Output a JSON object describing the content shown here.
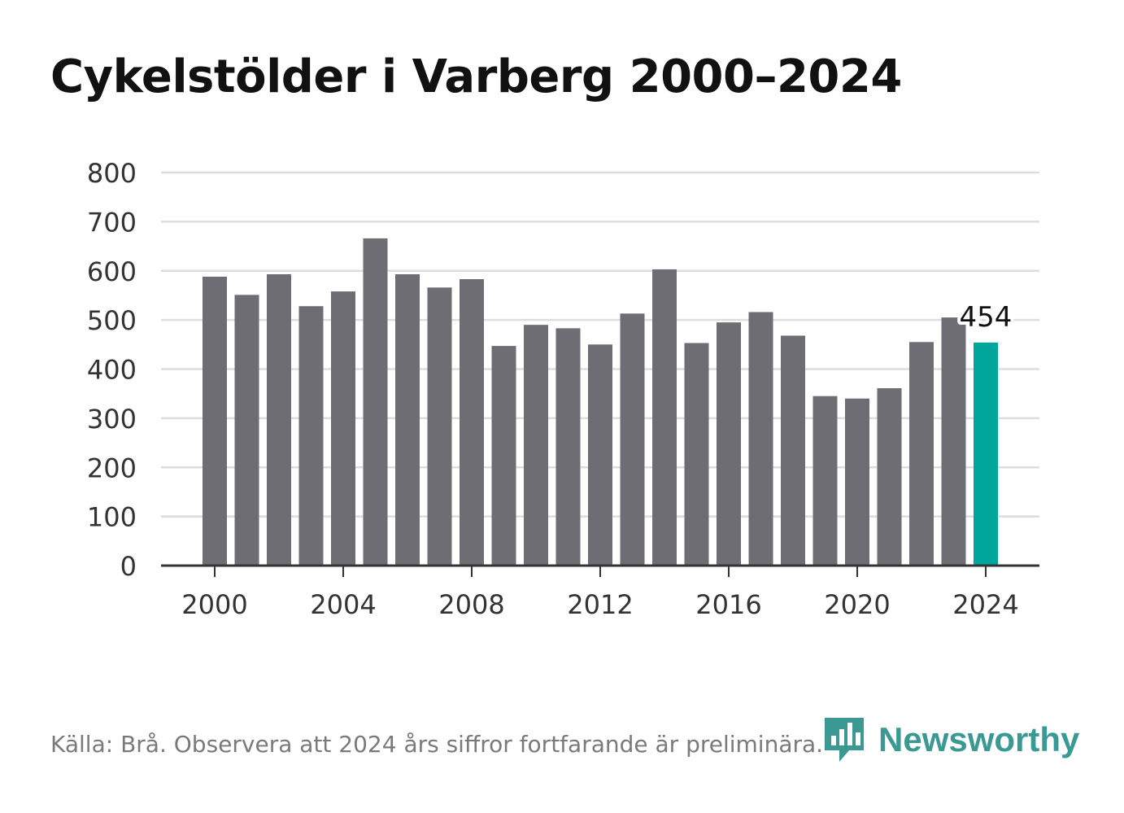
{
  "title": "Cykelstölder i Varberg 2000–2024",
  "source": "Källa: Brå. Observera att 2024 års siffror fortfarande är preliminära.",
  "brand": {
    "name": "Newsworthy",
    "icon": "newsworthy-logo-icon"
  },
  "colors": {
    "bar": "#6e6d74",
    "highlight": "#00a59b",
    "brand": "#3a9a93",
    "grid": "#dddddd",
    "axis": "#333333"
  },
  "chart_data": {
    "type": "bar",
    "title": "Cykelstölder i Varberg 2000–2024",
    "xlabel": "",
    "ylabel": "",
    "categories": [
      "2000",
      "2001",
      "2002",
      "2003",
      "2004",
      "2005",
      "2006",
      "2007",
      "2008",
      "2009",
      "2010",
      "2011",
      "2012",
      "2013",
      "2014",
      "2015",
      "2016",
      "2017",
      "2018",
      "2019",
      "2020",
      "2021",
      "2022",
      "2023",
      "2024"
    ],
    "values": [
      588,
      551,
      593,
      528,
      558,
      666,
      593,
      566,
      583,
      447,
      490,
      483,
      450,
      513,
      603,
      453,
      495,
      516,
      468,
      345,
      340,
      361,
      455,
      505,
      454
    ],
    "ylim": [
      0,
      800
    ],
    "yticks": [
      0,
      100,
      200,
      300,
      400,
      500,
      600,
      700,
      800
    ],
    "xtick_labels": [
      "2000",
      "2004",
      "2008",
      "2012",
      "2016",
      "2020",
      "2024"
    ],
    "highlight_index": 24,
    "annotation": {
      "category": "2024",
      "text": "454"
    },
    "grid": true
  }
}
